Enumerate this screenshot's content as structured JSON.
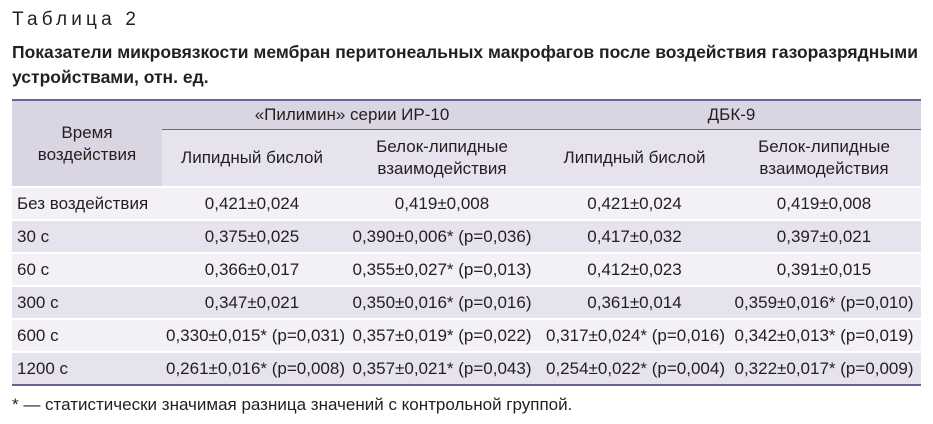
{
  "table_label": "Таблица 2",
  "caption": "Показатели микровязкости мембран перитонеальных макрофагов после воздействия газоразрядными устройствами, отн. ед.",
  "headers": {
    "time": "Время воздействия",
    "group1": "«Пилимин» серии ИР-10",
    "group2": "ДБК-9",
    "sub": [
      "Липидный бислой",
      "Белок-липидные взаимодействия",
      "Липидный бислой",
      "Белок-липидные взаимодействия"
    ]
  },
  "rows": [
    {
      "time": "Без воздействия",
      "c1": "0,421±0,024",
      "c2": "0,419±0,008",
      "c3": "0,421±0,024",
      "c4": "0,419±0,008"
    },
    {
      "time": "30 с",
      "c1": "0,375±0,025",
      "c2": "0,390±0,006* (p=0,036)",
      "c3": "0,417±0,032",
      "c4": "0,397±0,021"
    },
    {
      "time": "60 с",
      "c1": "0,366±0,017",
      "c2": "0,355±0,027* (p=0,013)",
      "c3": "0,412±0,023",
      "c4": "0,391±0,015"
    },
    {
      "time": "300 с",
      "c1": "0,347±0,021",
      "c2": "0,350±0,016* (p=0,016)",
      "c3": "0,361±0,014",
      "c4": "0,359±0,016* (p=0,010)"
    },
    {
      "time": "600 с",
      "c1": "0,330±0,015* (p=0,031)",
      "c2": "0,357±0,019* (p=0,022)",
      "c3": "0,317±0,024* (p=0,016)",
      "c4": "0,342±0,013* (p=0,019)"
    },
    {
      "time": "1200 с",
      "c1": "0,261±0,016* (p=0,008)",
      "c2": "0,357±0,021* (p=0,043)",
      "c3": "0,254±0,022* (p=0,004)",
      "c4": "0,322±0,017* (p=0,009)"
    }
  ],
  "footnote": "* — статистически значимая разница значений с контрольной группой."
}
